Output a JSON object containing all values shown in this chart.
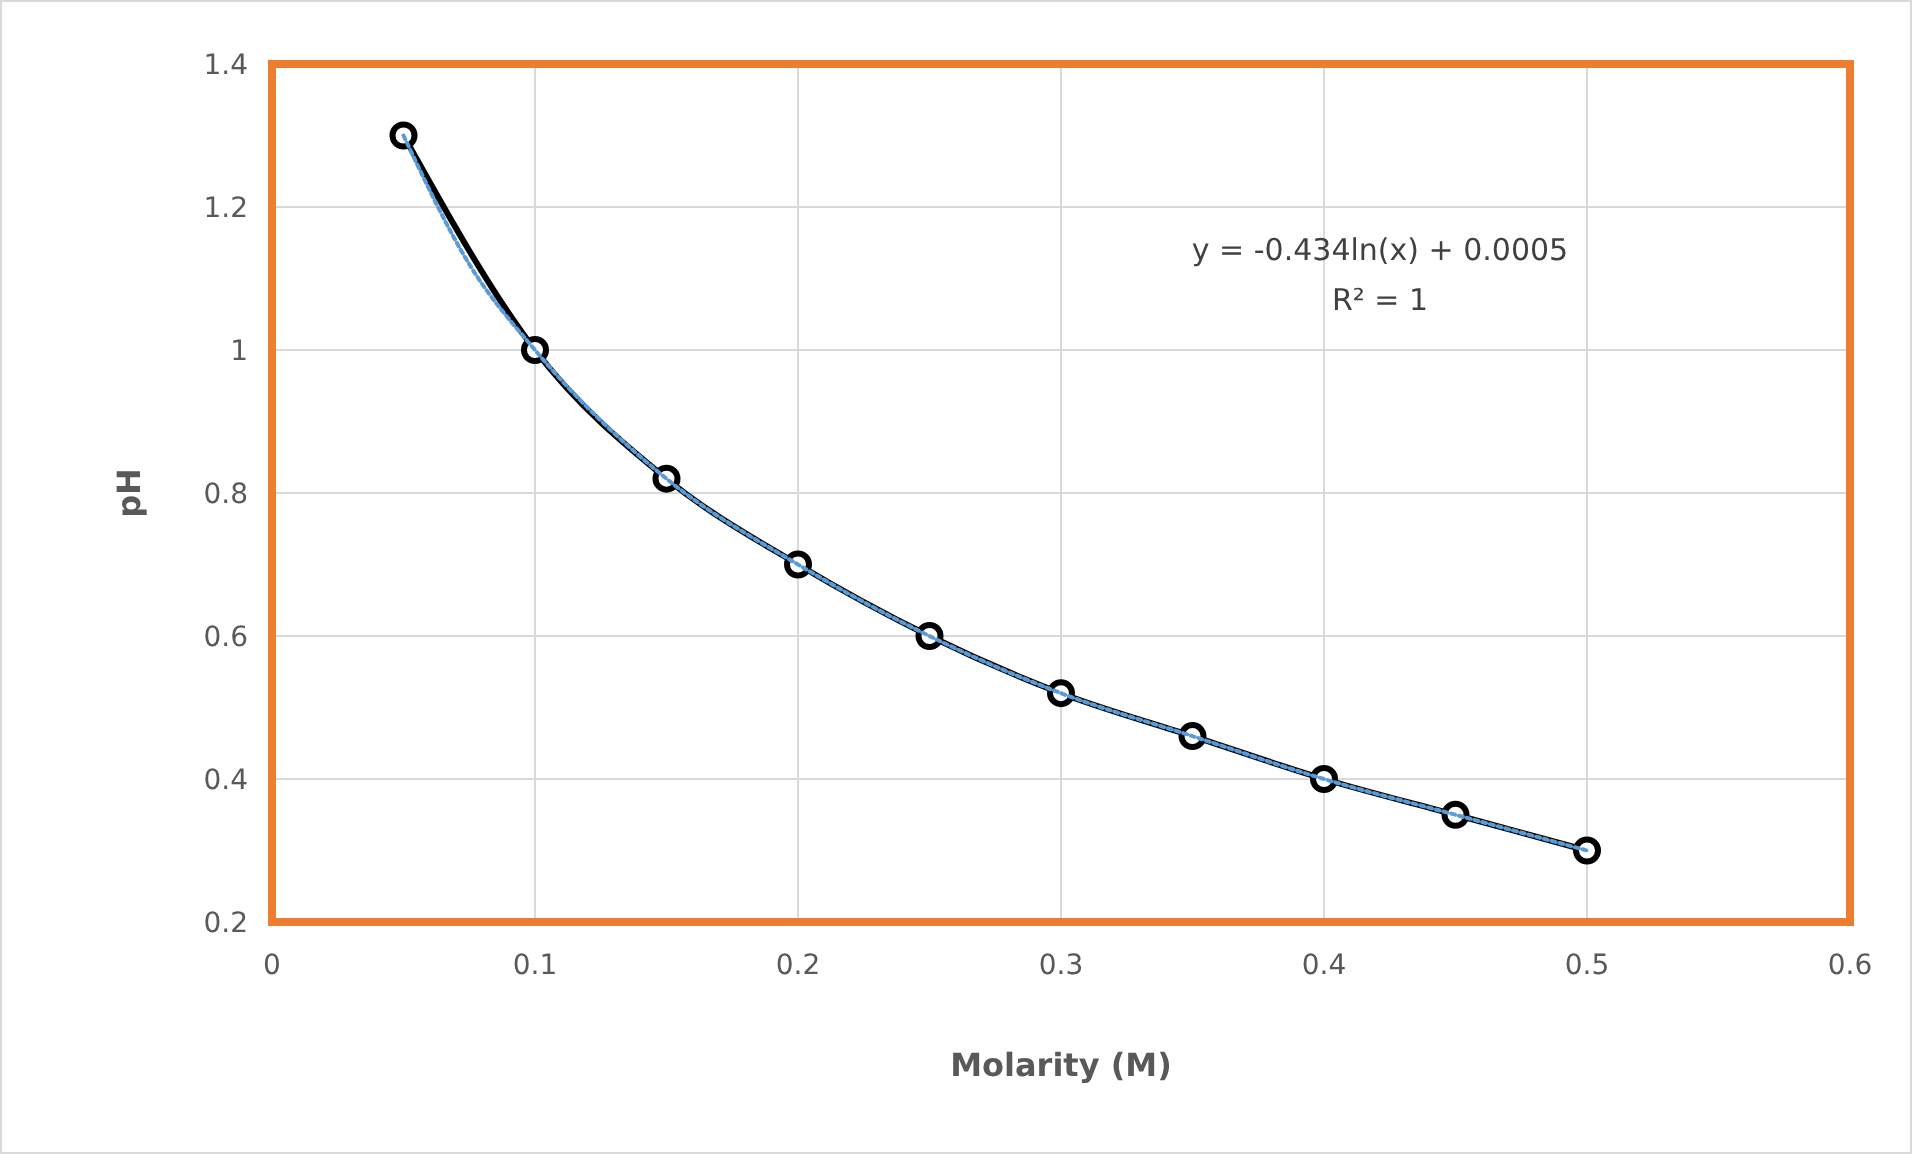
{
  "chart_data": {
    "type": "line",
    "xlabel": "Molarity (M)",
    "ylabel": "pH",
    "x": [
      0.05,
      0.1,
      0.15,
      0.2,
      0.25,
      0.3,
      0.35,
      0.4,
      0.45,
      0.5
    ],
    "series": [
      {
        "color": "#000000",
        "values": [
          1.3,
          1.0,
          0.82,
          0.7,
          0.6,
          0.52,
          0.46,
          0.4,
          0.35,
          0.3
        ],
        "marker": "circle",
        "line_style": "solid"
      },
      {
        "type": "line",
        "color": "#5b9bd5",
        "x": [
          0.05,
          0.075,
          0.1,
          0.15,
          0.2,
          0.25,
          0.3,
          0.35,
          0.4,
          0.45,
          0.5
        ],
        "values": [
          1.3,
          1.12,
          1.0,
          0.82,
          0.7,
          0.6,
          0.52,
          0.46,
          0.4,
          0.35,
          0.3
        ],
        "marker": "none",
        "line_style": "dotted"
      }
    ],
    "xlim": [
      0,
      0.6
    ],
    "xticks": [
      0,
      0.1,
      0.2,
      0.3,
      0.4,
      0.5,
      0.6
    ],
    "ylim": [
      0.2,
      1.4
    ],
    "yticks": [
      0.2,
      0.4,
      0.6,
      0.8,
      1,
      1.2,
      1.4
    ],
    "grid": true,
    "annotations": [
      "y = -0.434ln(x) + 0.0005",
      "R² = 1"
    ]
  }
}
